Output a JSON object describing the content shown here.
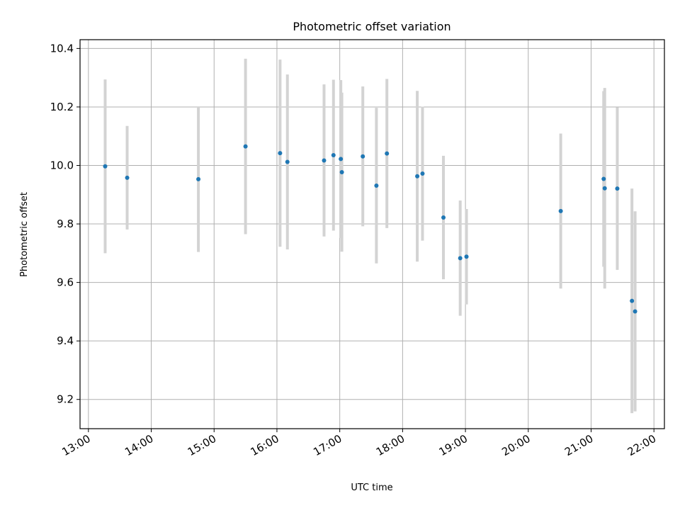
{
  "chart_data": {
    "type": "scatter",
    "title": "Photometric offset variation",
    "xlabel": "UTC time",
    "ylabel": "Photometric offset",
    "xlim": [
      "12:52",
      "22:10"
    ],
    "ylim": [
      9.1,
      10.43
    ],
    "x_ticks": [
      "13:00",
      "14:00",
      "15:00",
      "16:00",
      "17:00",
      "18:00",
      "19:00",
      "20:00",
      "21:00",
      "22:00"
    ],
    "y_ticks": [
      9.2,
      9.4,
      9.6,
      9.8,
      10.0,
      10.2,
      10.4
    ],
    "grid": true,
    "colors": {
      "point": "#1f77b4",
      "errorbar": "#d3d3d3",
      "grid": "#b0b0b0",
      "axis": "#000000"
    },
    "points": [
      {
        "x": "13:16",
        "y": 9.997,
        "err": 0.297
      },
      {
        "x": "13:37",
        "y": 9.958,
        "err": 0.177
      },
      {
        "x": "14:45",
        "y": 9.953,
        "err": 0.249
      },
      {
        "x": "15:30",
        "y": 10.065,
        "err": 0.3
      },
      {
        "x": "16:03",
        "y": 10.042,
        "err": 0.32
      },
      {
        "x": "16:10",
        "y": 10.012,
        "err": 0.299
      },
      {
        "x": "16:45",
        "y": 10.017,
        "err": 0.26
      },
      {
        "x": "16:54",
        "y": 10.035,
        "err": 0.258
      },
      {
        "x": "17:01",
        "y": 10.022,
        "err": 0.27
      },
      {
        "x": "17:02",
        "y": 9.977,
        "err": 0.272
      },
      {
        "x": "17:22",
        "y": 10.031,
        "err": 0.239
      },
      {
        "x": "17:35",
        "y": 9.931,
        "err": 0.266
      },
      {
        "x": "17:45",
        "y": 10.041,
        "err": 0.255
      },
      {
        "x": "18:14",
        "y": 9.963,
        "err": 0.292
      },
      {
        "x": "18:19",
        "y": 9.972,
        "err": 0.229
      },
      {
        "x": "18:39",
        "y": 9.822,
        "err": 0.211
      },
      {
        "x": "18:55",
        "y": 9.683,
        "err": 0.197
      },
      {
        "x": "19:01",
        "y": 9.688,
        "err": 0.163
      },
      {
        "x": "20:31",
        "y": 9.844,
        "err": 0.265
      },
      {
        "x": "21:12",
        "y": 9.954,
        "err": 0.3
      },
      {
        "x": "21:13",
        "y": 9.922,
        "err": 0.343
      },
      {
        "x": "21:25",
        "y": 9.921,
        "err": 0.278
      },
      {
        "x": "21:39",
        "y": 9.537,
        "err": 0.384
      },
      {
        "x": "21:42",
        "y": 9.501,
        "err": 0.342
      }
    ]
  }
}
